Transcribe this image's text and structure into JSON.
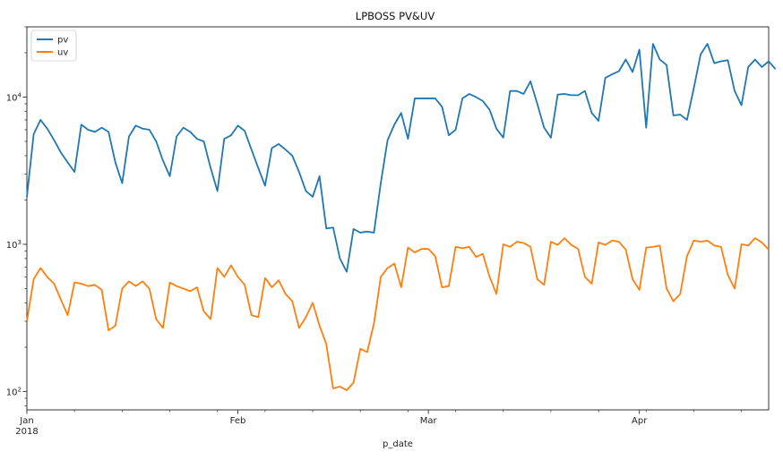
{
  "chart_data": {
    "type": "line",
    "title": "LPBOSS PV&UV",
    "xlabel": "p_date",
    "ylabel": "",
    "yscale": "log",
    "ylim": [
      75,
      30000
    ],
    "xlim": [
      "2018-01-01",
      "2018-04-20"
    ],
    "grid": false,
    "legend_position": "top-left",
    "x_ticks": [
      {
        "date": "2018-01-01",
        "label": "Jan",
        "sublabel": "2018"
      },
      {
        "date": "2018-02-01",
        "label": "Feb",
        "sublabel": ""
      },
      {
        "date": "2018-03-01",
        "label": "Mar",
        "sublabel": ""
      },
      {
        "date": "2018-04-01",
        "label": "Apr",
        "sublabel": ""
      }
    ],
    "y_ticks": [
      {
        "value": 100,
        "base": "10",
        "exp": "2"
      },
      {
        "value": 1000,
        "base": "10",
        "exp": "3"
      },
      {
        "value": 10000,
        "base": "10",
        "exp": "4"
      }
    ],
    "start_date": "2018-01-01",
    "series": [
      {
        "name": "pv",
        "color": "#1f77b4",
        "values": [
          2100,
          5600,
          7000,
          6100,
          5100,
          4200,
          3600,
          3100,
          6500,
          6000,
          5800,
          6200,
          5800,
          3600,
          2600,
          5400,
          6400,
          6100,
          6000,
          5000,
          3700,
          2900,
          5400,
          6200,
          5800,
          5200,
          5000,
          3300,
          2300,
          5200,
          5500,
          6400,
          5900,
          4400,
          3300,
          2500,
          4500,
          4800,
          4400,
          4000,
          3100,
          2300,
          2100,
          2900,
          1280,
          1300,
          800,
          650,
          1270,
          1200,
          1220,
          1200,
          2600,
          5100,
          6500,
          7800,
          5200,
          9800,
          9800,
          9800,
          9800,
          8600,
          5500,
          6000,
          9800,
          10500,
          10000,
          9400,
          8200,
          6100,
          5300,
          11000,
          11000,
          10500,
          12800,
          9000,
          6200,
          5300,
          10400,
          10500,
          10300,
          10300,
          11000,
          7800,
          6900,
          13500,
          14300,
          15000,
          18000,
          14800,
          21000,
          6200,
          23000,
          18000,
          16500,
          7500,
          7600,
          7000,
          11500,
          19500,
          23000,
          17000,
          17500,
          17800,
          11000,
          8800,
          16000,
          18000,
          16000,
          17500,
          15500
        ]
      },
      {
        "name": "uv",
        "color": "#ff7f0e",
        "values": [
          300,
          580,
          690,
          600,
          540,
          420,
          330,
          550,
          540,
          520,
          530,
          490,
          260,
          280,
          500,
          560,
          520,
          560,
          500,
          310,
          270,
          550,
          520,
          500,
          480,
          510,
          350,
          310,
          690,
          600,
          720,
          600,
          530,
          330,
          320,
          590,
          510,
          570,
          460,
          410,
          270,
          320,
          400,
          280,
          210,
          105,
          108,
          102,
          115,
          195,
          185,
          290,
          600,
          690,
          740,
          510,
          950,
          880,
          930,
          930,
          830,
          510,
          520,
          960,
          940,
          960,
          820,
          860,
          600,
          460,
          1000,
          960,
          1040,
          1020,
          960,
          580,
          530,
          1040,
          990,
          1100,
          990,
          930,
          600,
          540,
          1030,
          990,
          1060,
          1040,
          920,
          580,
          490,
          950,
          960,
          980,
          500,
          410,
          460,
          830,
          1060,
          1040,
          1060,
          980,
          960,
          620,
          500,
          1000,
          980,
          1100,
          1030,
          920
        ]
      }
    ]
  }
}
